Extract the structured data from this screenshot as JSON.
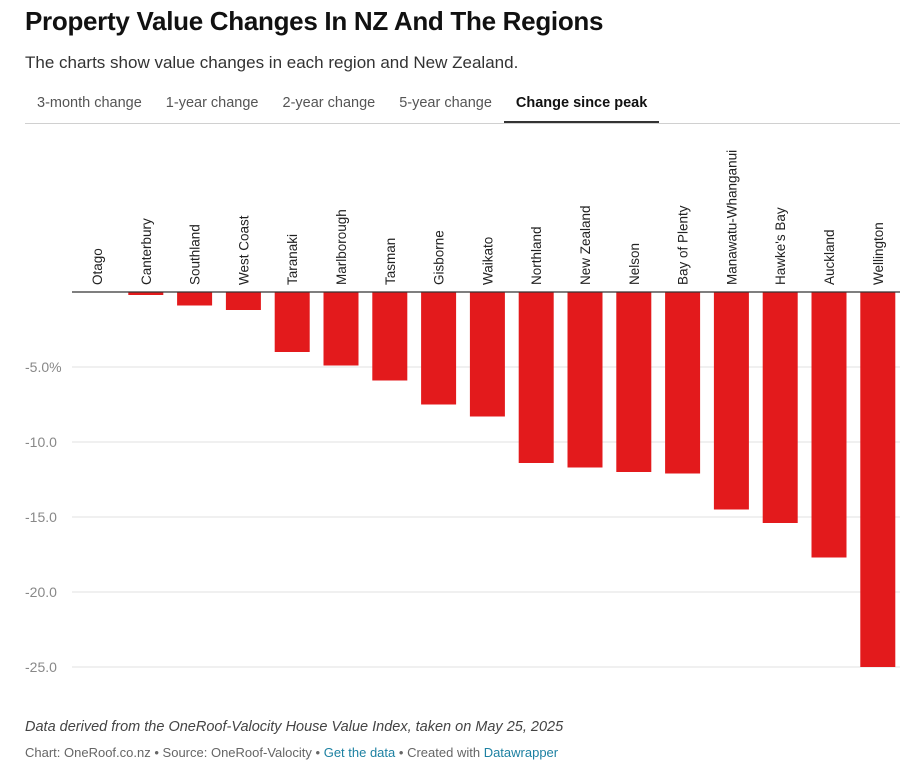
{
  "header": {
    "title": "Property Value Changes In NZ And The Regions",
    "subtitle": "The charts show value changes in each region and New Zealand."
  },
  "tabs": [
    {
      "label": "3-month change"
    },
    {
      "label": "1-year change"
    },
    {
      "label": "2-year change"
    },
    {
      "label": "5-year change"
    },
    {
      "label": "Change since peak"
    }
  ],
  "active_tab": 4,
  "footer": {
    "note": "Data derived from the OneRoof-Valocity House Value Index, taken on May 25, 2025",
    "chart_credit": "Chart: OneRoof.co.nz",
    "source": "Source: OneRoof-Valocity",
    "get_data_link": "Get the data",
    "created_with": "Created with",
    "datawrapper_link": "Datawrapper",
    "separator": "•"
  },
  "colors": {
    "bar": "#e31a1c",
    "grid": "#e2e2e2",
    "axis": "#333333",
    "link": "#1d81a2"
  },
  "chart_data": {
    "type": "bar",
    "categories": [
      "Otago",
      "Canterbury",
      "Southland",
      "West Coast",
      "Taranaki",
      "Marlborough",
      "Tasman",
      "Gisborne",
      "Waikato",
      "Northland",
      "New Zealand",
      "Nelson",
      "Bay of Plenty",
      "Manawatu-Whanganui",
      "Hawke's Bay",
      "Auckland",
      "Wellington"
    ],
    "values": [
      0.0,
      -0.2,
      -0.9,
      -1.2,
      -4.0,
      -4.9,
      -5.9,
      -7.5,
      -8.3,
      -11.4,
      -11.7,
      -12.0,
      -12.1,
      -14.5,
      -15.4,
      -17.7,
      -25.0
    ],
    "title": "Property Value Changes In NZ And The Regions",
    "xlabel": "",
    "ylabel": "",
    "ylim": [
      -25,
      0
    ],
    "yticks": [
      -5,
      -10,
      -15,
      -20,
      -25
    ],
    "ytick_labels": [
      "-5.0%",
      "-10.0",
      "-15.0",
      "-20.0",
      "-25.0"
    ],
    "grid": true,
    "legend": "none"
  }
}
